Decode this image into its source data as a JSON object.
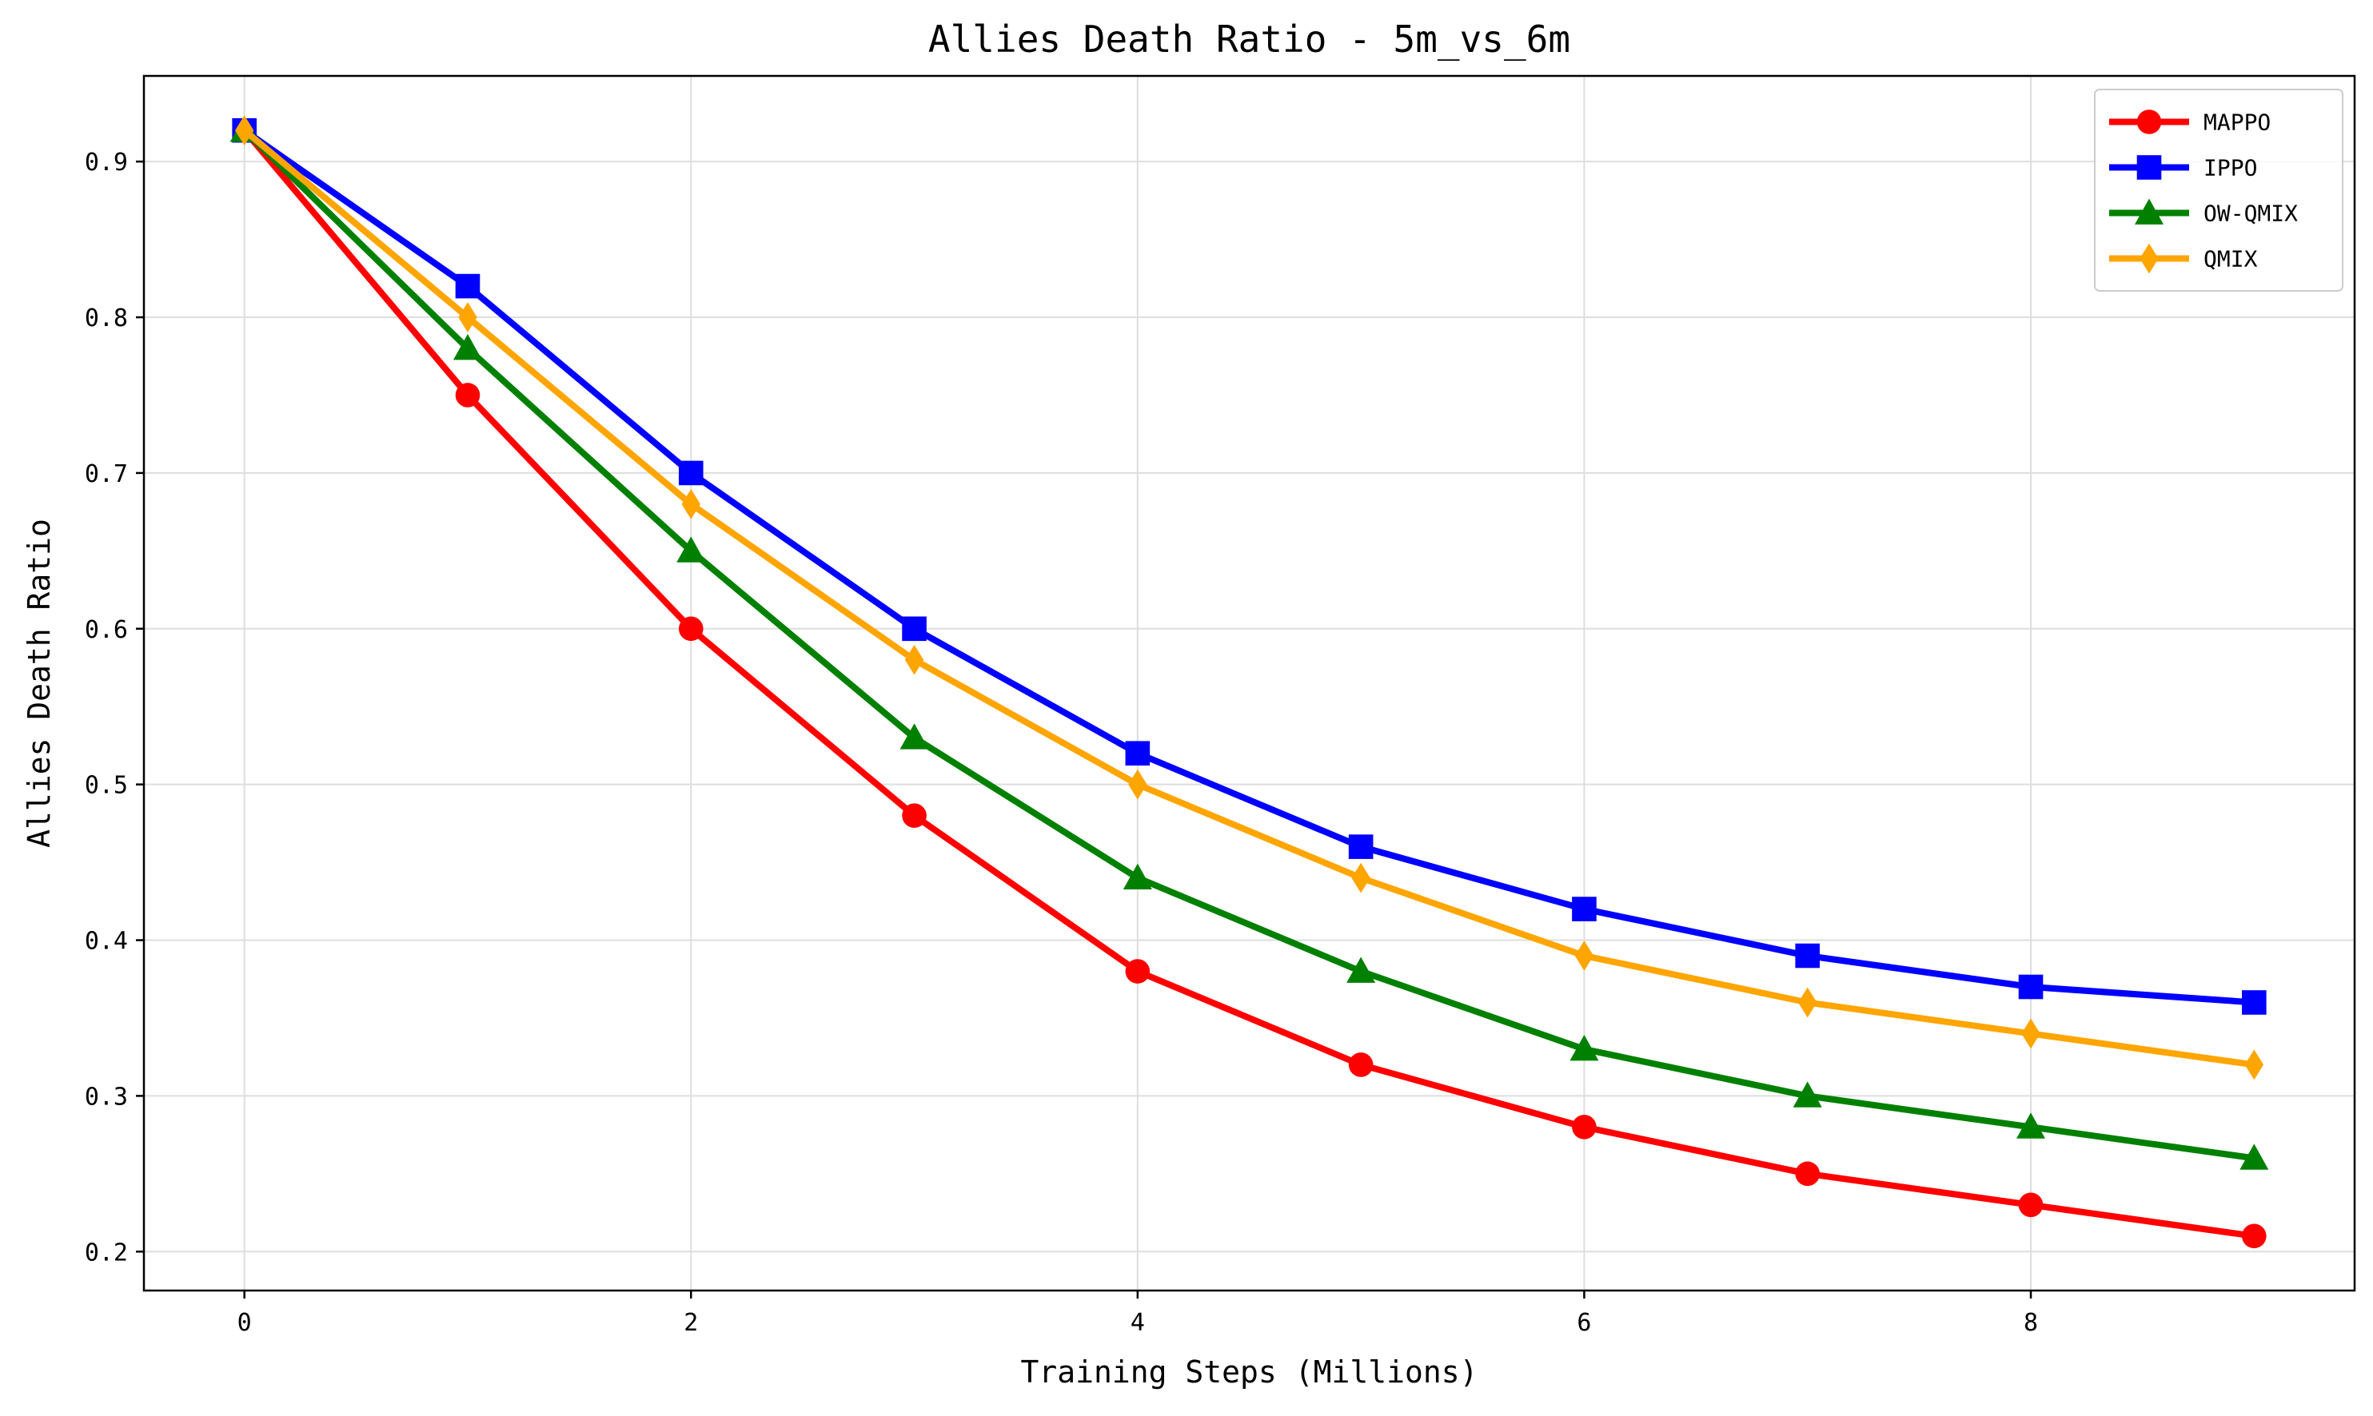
{
  "chart_data": {
    "type": "line",
    "title": "Allies Death Ratio - 5m_vs_6m",
    "xlabel": "Training Steps (Millions)",
    "ylabel": "Allies Death Ratio",
    "x": [
      0,
      1,
      2,
      3,
      4,
      5,
      6,
      7,
      8,
      9
    ],
    "xlim": [
      -0.45,
      9.45
    ],
    "ylim": [
      0.175,
      0.955
    ],
    "x_ticks": [
      0,
      2,
      4,
      6,
      8
    ],
    "y_ticks": [
      0.2,
      0.3,
      0.4,
      0.5,
      0.6,
      0.7,
      0.8,
      0.9
    ],
    "x_tick_labels": [
      "0",
      "2",
      "4",
      "6",
      "8"
    ],
    "y_tick_labels": [
      "0.2",
      "0.3",
      "0.4",
      "0.5",
      "0.6",
      "0.7",
      "0.8",
      "0.9"
    ],
    "grid": true,
    "legend_position": "top-right",
    "series": [
      {
        "name": "MAPPO",
        "color": "#ff0000",
        "marker": "circle",
        "values": [
          0.92,
          0.75,
          0.6,
          0.48,
          0.38,
          0.32,
          0.28,
          0.25,
          0.23,
          0.21
        ]
      },
      {
        "name": "IPPO",
        "color": "#0000ff",
        "marker": "square",
        "values": [
          0.92,
          0.82,
          0.7,
          0.6,
          0.52,
          0.46,
          0.42,
          0.39,
          0.37,
          0.36
        ]
      },
      {
        "name": "OW-QMIX",
        "color": "#008000",
        "marker": "triangle",
        "values": [
          0.92,
          0.78,
          0.65,
          0.53,
          0.44,
          0.38,
          0.33,
          0.3,
          0.28,
          0.26
        ]
      },
      {
        "name": "QMIX",
        "color": "#ffa500",
        "marker": "diamond",
        "values": [
          0.92,
          0.8,
          0.68,
          0.58,
          0.5,
          0.44,
          0.39,
          0.36,
          0.34,
          0.32
        ]
      }
    ]
  }
}
